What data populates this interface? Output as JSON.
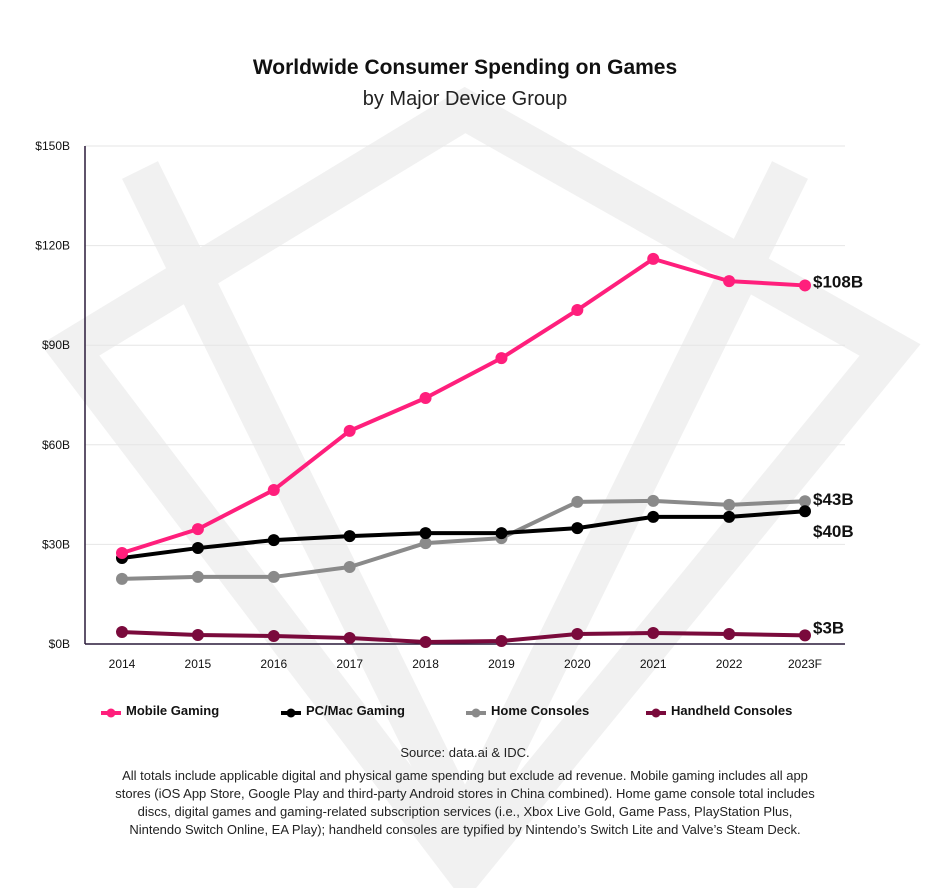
{
  "chart_data": {
    "type": "line",
    "title": "Worldwide Consumer Spending on Games",
    "subtitle": "by Major Device Group",
    "xlabel": "",
    "ylabel": "",
    "categories": [
      "2014",
      "2015",
      "2016",
      "2017",
      "2018",
      "2019",
      "2020",
      "2021",
      "2022",
      "2023F"
    ],
    "yticks": [
      "$0B",
      "$30B",
      "$60B",
      "$90B",
      "$120B",
      "$150B"
    ],
    "ytick_values": [
      0,
      30,
      60,
      90,
      120,
      150
    ],
    "ylim": [
      0,
      150
    ],
    "grid": true,
    "legend_position": "bottom",
    "series": [
      {
        "name": "Mobile Gaming",
        "color": "#ff1f7c",
        "values": [
          27.4,
          34.6,
          46.4,
          64.2,
          74.1,
          86.1,
          100.6,
          116,
          109.3,
          108
        ],
        "end_label": "$108B"
      },
      {
        "name": "PC/Mac Gaming",
        "color": "#000000",
        "values": [
          25.9,
          28.9,
          31.3,
          32.5,
          33.4,
          33.4,
          34.9,
          38.3,
          38.3,
          40
        ],
        "end_label": "$40B"
      },
      {
        "name": "Home Consoles",
        "color": "#8a8a8a",
        "values": [
          19.6,
          20.2,
          20.2,
          23.2,
          30.4,
          31.9,
          42.8,
          43.1,
          41.9,
          43
        ],
        "end_label": "$43B"
      },
      {
        "name": "Handheld Consoles",
        "color": "#7a0a3c",
        "values": [
          3.6,
          2.7,
          2.4,
          1.8,
          0.6,
          0.9,
          3.0,
          3.3,
          3.0,
          2.6
        ],
        "end_label": "$3B"
      }
    ]
  },
  "source": "Source: data.ai & IDC.",
  "notes": "All totals include applicable digital and physical game spending but exclude ad revenue. Mobile gaming includes all app stores (iOS App Store, Google Play and third-party Android stores in China combined). Home game console total includes discs, digital games and gaming-related subscription services (i.e., Xbox Live Gold, Game Pass, PlayStation Plus, Nintendo Switch Online, EA Play); handheld consoles are typified by Nintendo’s Switch Lite and Valve’s Steam Deck."
}
